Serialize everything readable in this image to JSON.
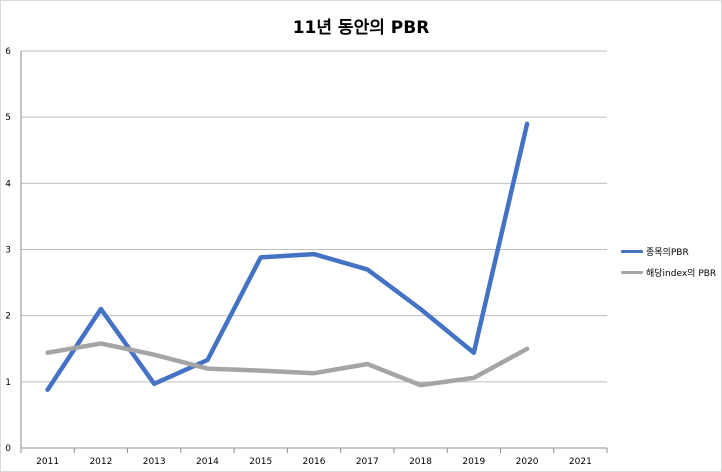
{
  "chart_data": {
    "type": "line",
    "title": "11년 동안의 PBR",
    "categories": [
      "2011",
      "2012",
      "2013",
      "2014",
      "2015",
      "2016",
      "2017",
      "2018",
      "2019",
      "2020",
      "2021"
    ],
    "series": [
      {
        "name": "종목의PBR",
        "color": "#4472c4",
        "values": [
          0.88,
          2.1,
          0.97,
          1.33,
          2.88,
          2.93,
          2.7,
          2.1,
          1.44,
          4.9,
          null
        ]
      },
      {
        "name": "해당index의 PBR",
        "color": "#a5a5a5",
        "values": [
          1.44,
          1.58,
          1.41,
          1.2,
          1.17,
          1.13,
          1.27,
          0.95,
          1.06,
          1.5,
          null
        ]
      }
    ],
    "yticks": [
      "0",
      "1",
      "2",
      "3",
      "4",
      "5",
      "6"
    ],
    "ylim": [
      0,
      6
    ],
    "grid": true,
    "legend_position": "right"
  }
}
